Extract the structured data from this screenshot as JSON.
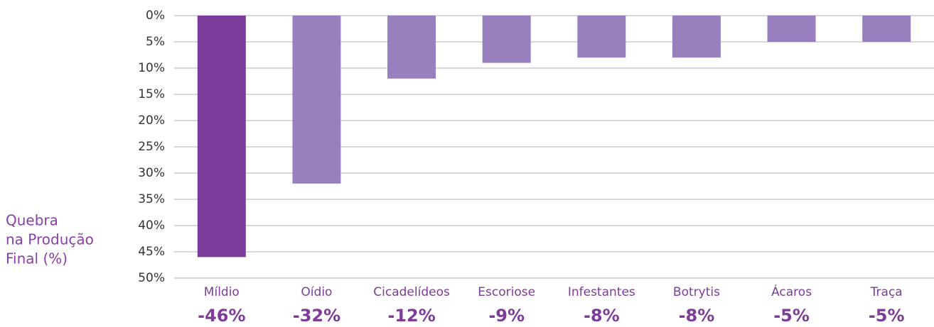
{
  "chart_data": {
    "type": "bar",
    "ylabel": [
      "Quebra",
      "na Produção",
      "Final (%)"
    ],
    "categories": [
      "Míldio",
      "Oídio",
      "Cicadelídeos",
      "Escoriose",
      "Infestantes",
      "Botrytis",
      "Ácaros",
      "Traça"
    ],
    "values": [
      46,
      32,
      12,
      9,
      8,
      8,
      5,
      5
    ],
    "value_labels": [
      "-46%",
      "-32%",
      "-12%",
      "-9%",
      "-8%",
      "-8%",
      "-5%",
      "-5%"
    ],
    "colors": [
      "#7b3b9a",
      "#9880bf",
      "#9880bf",
      "#9880bf",
      "#9880bf",
      "#9880bf",
      "#9880bf",
      "#9880bf"
    ],
    "ylim": [
      0,
      50
    ],
    "inverted": true,
    "yticks": [
      {
        "value": 0,
        "label": "0%"
      },
      {
        "value": 5,
        "label": "5%"
      },
      {
        "value": 10,
        "label": "10%"
      },
      {
        "value": 15,
        "label": "15%"
      },
      {
        "value": 20,
        "label": "20%"
      },
      {
        "value": 25,
        "label": "25%"
      },
      {
        "value": 30,
        "label": "30%"
      },
      {
        "value": 35,
        "label": "35%"
      },
      {
        "value": 40,
        "label": "40%"
      },
      {
        "value": 45,
        "label": "45%"
      },
      {
        "value": 50,
        "label": "50%"
      }
    ],
    "grid": true
  }
}
